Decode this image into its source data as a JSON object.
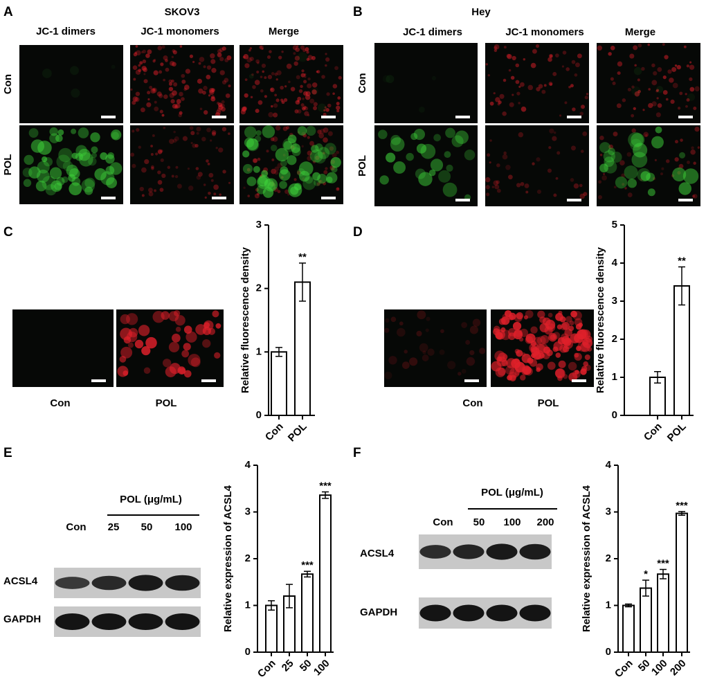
{
  "panel_labels": [
    "A",
    "B",
    "C",
    "D",
    "E",
    "F"
  ],
  "jc1": [
    {
      "title": "SKOV3",
      "columns": [
        "JC-1 dimers",
        "JC-1 monomers",
        "Merge"
      ],
      "rows": [
        "Con",
        "POL"
      ]
    },
    {
      "title": "Hey",
      "columns": [
        "JC-1 dimers",
        "JC-1 monomers",
        "Merge"
      ],
      "rows": [
        "Con",
        "POL"
      ]
    }
  ],
  "fluorescence": [
    {
      "images": [
        "Con",
        "POL"
      ]
    },
    {
      "images": [
        "Con",
        "POL"
      ]
    }
  ],
  "blots": [
    {
      "treatment": "POL (μg/mL)",
      "lanes": [
        "Con",
        "25",
        "50",
        "100"
      ],
      "proteins": [
        "ACSL4",
        "GAPDH"
      ]
    },
    {
      "treatment": "POL (μg/mL)",
      "lanes": [
        "Con",
        "50",
        "100",
        "200"
      ],
      "proteins": [
        "ACSL4",
        "GAPDH"
      ]
    }
  ],
  "chart_data": [
    {
      "type": "bar",
      "ylabel": "Relative fluorescence density",
      "categories": [
        "Con",
        "POL"
      ],
      "values": [
        1.0,
        2.1
      ],
      "errors": [
        0.07,
        0.3
      ],
      "significance": [
        null,
        "**"
      ],
      "ylim": [
        0,
        3
      ],
      "yticks": [
        0,
        1,
        2,
        3
      ],
      "color": "#ffffff",
      "edgecolor": "#000000"
    },
    {
      "type": "bar",
      "ylabel": "Relative fluorescence density",
      "categories": [
        "Con",
        "POL"
      ],
      "values": [
        1.0,
        3.4
      ],
      "errors": [
        0.15,
        0.5
      ],
      "significance": [
        null,
        "**"
      ],
      "ylim": [
        0,
        5
      ],
      "yticks": [
        0,
        1,
        2,
        3,
        4,
        5
      ],
      "color": "#ffffff",
      "edgecolor": "#000000"
    },
    {
      "type": "bar",
      "ylabel": "Relative expression of ACSL4",
      "categories": [
        "Con",
        "25",
        "50",
        "100"
      ],
      "values": [
        1.0,
        1.2,
        1.67,
        3.36
      ],
      "errors": [
        0.1,
        0.25,
        0.06,
        0.07
      ],
      "significance": [
        null,
        null,
        "***",
        "***"
      ],
      "ylim": [
        0,
        4
      ],
      "yticks": [
        0,
        1,
        2,
        3,
        4
      ],
      "color": "#ffffff",
      "edgecolor": "#000000"
    },
    {
      "type": "bar",
      "ylabel": "Relative expression of ACSL4",
      "categories": [
        "Con",
        "50",
        "100",
        "200"
      ],
      "values": [
        1.0,
        1.37,
        1.67,
        2.97
      ],
      "errors": [
        0.03,
        0.17,
        0.1,
        0.04
      ],
      "significance": [
        null,
        "*",
        "***",
        "***"
      ],
      "ylim": [
        0,
        4
      ],
      "yticks": [
        0,
        1,
        2,
        3,
        4
      ],
      "color": "#ffffff",
      "edgecolor": "#000000"
    }
  ]
}
